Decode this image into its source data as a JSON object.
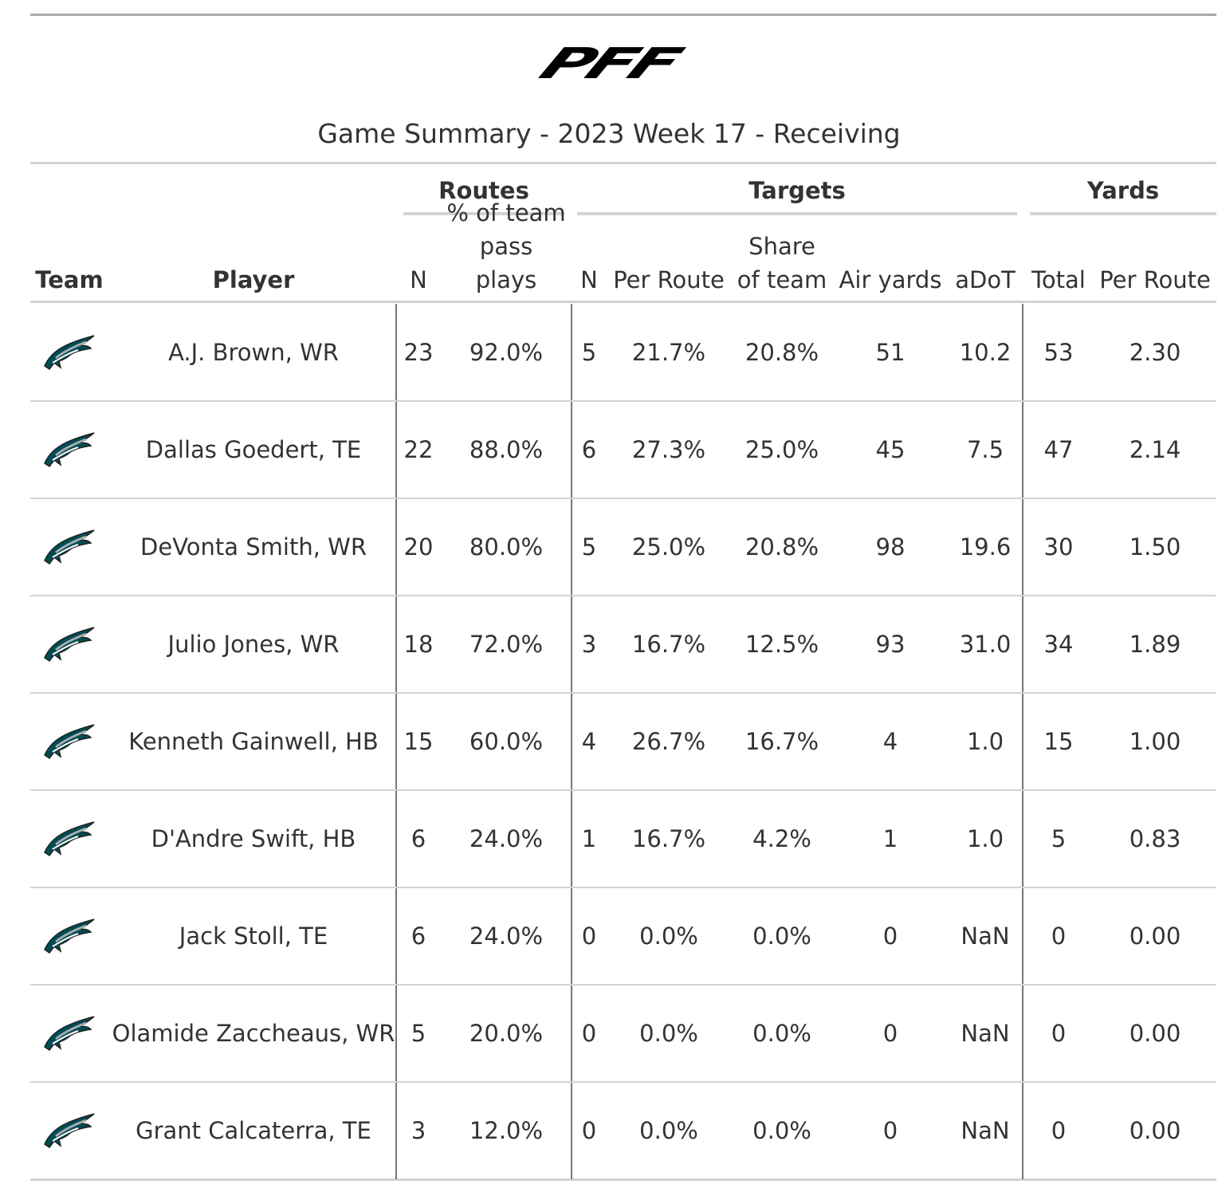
{
  "header": {
    "logo": "PFF",
    "title": "Game Summary - 2023 Week 17 - Receiving"
  },
  "table": {
    "spanners": [
      "Routes",
      "Targets",
      "Yards"
    ],
    "columns": [
      "Team",
      "Player",
      "N",
      "% of team pass plays",
      "N",
      "Per Route",
      "Share of team",
      "Air yards",
      "aDoT",
      "Total",
      "Per Route"
    ],
    "rows": [
      [
        "A.J. Brown, WR",
        "23",
        "92.0%",
        "5",
        "21.7%",
        "20.8%",
        "51",
        "10.2",
        "53",
        "2.30"
      ],
      [
        "Dallas Goedert, TE",
        "22",
        "88.0%",
        "6",
        "27.3%",
        "25.0%",
        "45",
        "7.5",
        "47",
        "2.14"
      ],
      [
        "DeVonta Smith, WR",
        "20",
        "80.0%",
        "5",
        "25.0%",
        "20.8%",
        "98",
        "19.6",
        "30",
        "1.50"
      ],
      [
        "Julio Jones, WR",
        "18",
        "72.0%",
        "3",
        "16.7%",
        "12.5%",
        "93",
        "31.0",
        "34",
        "1.89"
      ],
      [
        "Kenneth Gainwell, HB",
        "15",
        "60.0%",
        "4",
        "26.7%",
        "16.7%",
        "4",
        "1.0",
        "15",
        "1.00"
      ],
      [
        "D'Andre Swift, HB",
        "6",
        "24.0%",
        "1",
        "16.7%",
        "4.2%",
        "1",
        "1.0",
        "5",
        "0.83"
      ],
      [
        "Jack Stoll, TE",
        "6",
        "24.0%",
        "0",
        "0.0%",
        "0.0%",
        "0",
        "NaN",
        "0",
        "0.00"
      ],
      [
        "Olamide Zaccheaus, WR",
        "5",
        "20.0%",
        "0",
        "0.0%",
        "0.0%",
        "0",
        "NaN",
        "0",
        "0.00"
      ],
      [
        "Grant Calcaterra, TE",
        "3",
        "12.0%",
        "0",
        "0.0%",
        "0.0%",
        "0",
        "NaN",
        "0",
        "0.00"
      ]
    ]
  }
}
